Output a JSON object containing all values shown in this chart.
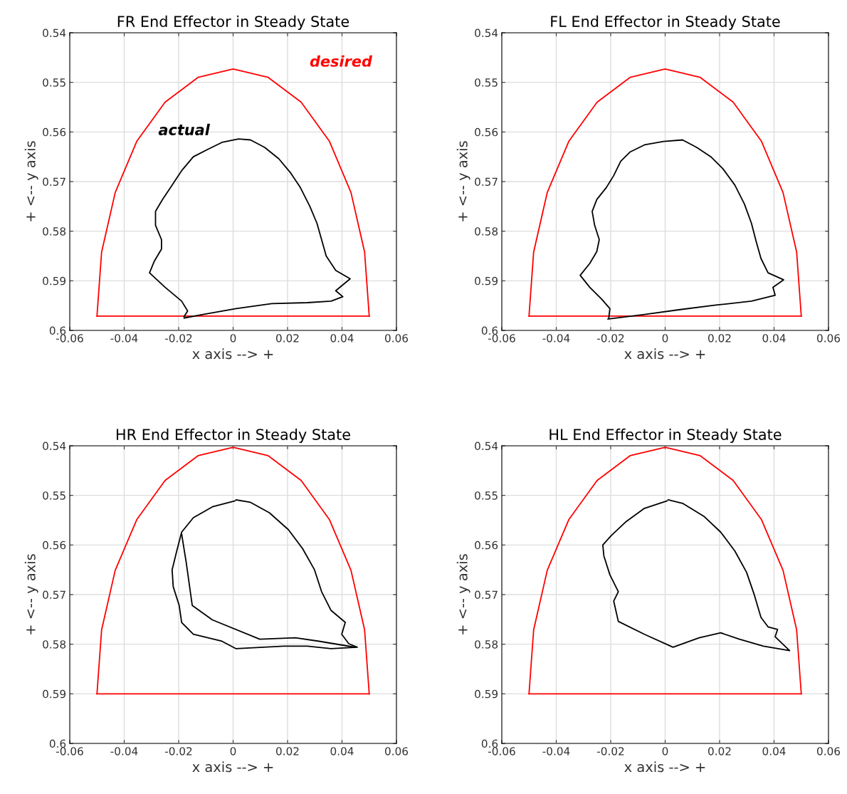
{
  "chart_data": [
    {
      "type": "line",
      "title": "FR End Effector in Steady State",
      "xlabel": "x axis --> +",
      "ylabel": "+ <-- y axis",
      "xlim": [
        -0.06,
        0.06
      ],
      "ylim": [
        0.6,
        0.54
      ],
      "xticks": [
        -0.06,
        -0.04,
        -0.02,
        0,
        0.02,
        0.04,
        0.06
      ],
      "yticks": [
        0.54,
        0.55,
        0.56,
        0.57,
        0.58,
        0.59,
        0.6
      ],
      "grid": true,
      "series": [
        {
          "name": "desired",
          "color": "#ff0000",
          "x": [
            -0.05,
            -0.0483,
            -0.0433,
            -0.0354,
            -0.025,
            -0.0129,
            0,
            0.0129,
            0.025,
            0.0354,
            0.0433,
            0.0483,
            0.05
          ],
          "values": [
            0.5971,
            0.5842,
            0.5722,
            0.5619,
            0.554,
            0.549,
            0.5473,
            0.549,
            0.554,
            0.5619,
            0.5722,
            0.5842,
            0.5971
          ]
        },
        {
          "color": "#ff0000",
          "x": [
            -0.05,
            0.05
          ],
          "values": [
            0.5971,
            0.5971
          ]
        },
        {
          "name": "actual",
          "color": "#000000",
          "x": [
            -0.018,
            -0.0167,
            -0.0189,
            -0.025,
            -0.0307,
            -0.0289,
            -0.0263,
            -0.0263,
            -0.0285,
            -0.0285,
            -0.0259,
            -0.0224,
            -0.0189,
            -0.0146,
            -0.0093,
            -0.0041,
            0.002,
            0.0064,
            0.0116,
            0.0168,
            0.0212,
            0.0247,
            0.0282,
            0.0308,
            0.0325,
            0.0342,
            0.0377,
            0.043,
            0.0377,
            0.0403,
            0.036,
            0.0273,
            0.0142,
            0.0011,
            -0.0111,
            -0.018
          ],
          "values": [
            0.5972,
            0.5961,
            0.5941,
            0.5913,
            0.5884,
            0.586,
            0.5836,
            0.5817,
            0.5788,
            0.576,
            0.5736,
            0.5707,
            0.5678,
            0.565,
            0.5635,
            0.5621,
            0.5614,
            0.5616,
            0.5631,
            0.5654,
            0.5683,
            0.5712,
            0.575,
            0.5784,
            0.5817,
            0.585,
            0.5879,
            0.5896,
            0.592,
            0.5932,
            0.5941,
            0.5944,
            0.5946,
            0.5956,
            0.5968,
            0.5975
          ]
        }
      ]
    },
    {
      "type": "line",
      "title": "FL End Effector in Steady State",
      "xlabel": "x axis --> +",
      "ylabel": "+ <-- y axis",
      "xlim": [
        -0.06,
        0.06
      ],
      "ylim": [
        0.6,
        0.54
      ],
      "xticks": [
        -0.06,
        -0.04,
        -0.02,
        0,
        0.02,
        0.04,
        0.06
      ],
      "yticks": [
        0.54,
        0.55,
        0.56,
        0.57,
        0.58,
        0.59,
        0.6
      ],
      "grid": true,
      "series": [
        {
          "color": "#ff0000",
          "x": [
            -0.05,
            -0.0483,
            -0.0433,
            -0.0354,
            -0.025,
            -0.0129,
            0,
            0.0129,
            0.025,
            0.0354,
            0.0433,
            0.0483,
            0.05
          ],
          "values": [
            0.5971,
            0.5842,
            0.5722,
            0.5619,
            0.554,
            0.549,
            0.5473,
            0.549,
            0.554,
            0.5619,
            0.5722,
            0.5842,
            0.5971
          ]
        },
        {
          "color": "#ff0000",
          "x": [
            -0.05,
            0.05
          ],
          "values": [
            0.5971,
            0.5971
          ]
        },
        {
          "color": "#000000",
          "x": [
            -0.0207,
            -0.0203,
            -0.0233,
            -0.0277,
            -0.0312,
            -0.0277,
            -0.0251,
            -0.0242,
            -0.0259,
            -0.0268,
            -0.0251,
            -0.0216,
            -0.0189,
            -0.0163,
            -0.0128,
            -0.0076,
            -0.0006,
            0.0064,
            0.0116,
            0.0168,
            0.0212,
            0.0256,
            0.0291,
            0.0317,
            0.0335,
            0.0352,
            0.0378,
            0.0435,
            0.0396,
            0.0404,
            0.0317,
            0.0186,
            0.0055,
            -0.0076,
            -0.021
          ],
          "values": [
            0.5975,
            0.5956,
            0.5937,
            0.5913,
            0.5889,
            0.5865,
            0.5841,
            0.5817,
            0.5788,
            0.576,
            0.5736,
            0.5712,
            0.5688,
            0.5659,
            0.564,
            0.5626,
            0.5619,
            0.5616,
            0.5631,
            0.565,
            0.5674,
            0.5707,
            0.5745,
            0.5784,
            0.5822,
            0.5855,
            0.5884,
            0.5898,
            0.5913,
            0.5929,
            0.5941,
            0.5949,
            0.5958,
            0.5968,
            0.5977
          ]
        }
      ]
    },
    {
      "type": "line",
      "title": "HR End Effector in Steady State",
      "xlabel": "x axis --> +",
      "ylabel": "+ <-- y axis",
      "xlim": [
        -0.06,
        0.06
      ],
      "ylim": [
        0.6,
        0.54
      ],
      "xticks": [
        -0.06,
        -0.04,
        -0.02,
        0,
        0.02,
        0.04,
        0.06
      ],
      "yticks": [
        0.54,
        0.55,
        0.56,
        0.57,
        0.58,
        0.59,
        0.6
      ],
      "grid": true,
      "series": [
        {
          "color": "#ff0000",
          "x": [
            -0.05,
            -0.0483,
            -0.0433,
            -0.0354,
            -0.025,
            -0.0129,
            0,
            0.0129,
            0.025,
            0.0354,
            0.0433,
            0.0483,
            0.05
          ],
          "values": [
            0.59,
            0.5771,
            0.5651,
            0.5549,
            0.547,
            0.542,
            0.5403,
            0.542,
            0.547,
            0.5549,
            0.5651,
            0.5771,
            0.59
          ]
        },
        {
          "color": "#ff0000",
          "x": [
            -0.05,
            0.05
          ],
          "values": [
            0.59,
            0.59
          ]
        },
        {
          "color": "#000000",
          "x": [
            0.0011,
            0.0064,
            0.0133,
            0.0203,
            0.0255,
            0.0299,
            0.0325,
            0.036,
            0.0412,
            0.0399,
            0.0425,
            0.0456,
            0.036,
            0.0273,
            0.0186,
            0.0011,
            -0.0041,
            -0.0146,
            -0.0189,
            -0.0198,
            -0.022,
            -0.0224,
            -0.0207,
            -0.0189,
            -0.0146,
            -0.0076,
            0.0007
          ],
          "values": [
            0.5509,
            0.5514,
            0.5535,
            0.5569,
            0.5607,
            0.565,
            0.5694,
            0.5732,
            0.5756,
            0.578,
            0.5799,
            0.5806,
            0.5809,
            0.5804,
            0.5804,
            0.5809,
            0.5794,
            0.578,
            0.5756,
            0.5722,
            0.5684,
            0.565,
            0.5612,
            0.5574,
            0.5545,
            0.5523,
            0.5511
          ]
        },
        {
          "color": "#000000",
          "x": [
            -0.0189,
            -0.0172,
            -0.015,
            -0.0076,
            0.0098,
            0.0229,
            0.0316,
            0.0447
          ],
          "values": [
            0.5578,
            0.5636,
            0.5722,
            0.5751,
            0.579,
            0.5787,
            0.5794,
            0.5806
          ]
        }
      ]
    },
    {
      "type": "line",
      "title": "HL End Effector in Steady State",
      "xlabel": "x axis --> +",
      "ylabel": "+ <-- y axis",
      "xlim": [
        -0.06,
        0.06
      ],
      "ylim": [
        0.6,
        0.54
      ],
      "xticks": [
        -0.06,
        -0.04,
        -0.02,
        0,
        0.02,
        0.04,
        0.06
      ],
      "yticks": [
        0.54,
        0.55,
        0.56,
        0.57,
        0.58,
        0.59,
        0.6
      ],
      "grid": true,
      "series": [
        {
          "color": "#ff0000",
          "x": [
            -0.05,
            -0.0483,
            -0.0433,
            -0.0354,
            -0.025,
            -0.0129,
            0,
            0.0129,
            0.025,
            0.0354,
            0.0433,
            0.0483,
            0.05
          ],
          "values": [
            0.59,
            0.5771,
            0.5651,
            0.5549,
            0.547,
            0.542,
            0.5403,
            0.542,
            0.547,
            0.5549,
            0.5651,
            0.5771,
            0.59
          ]
        },
        {
          "color": "#ff0000",
          "x": [
            -0.05,
            0.05
          ],
          "values": [
            0.59,
            0.59
          ]
        },
        {
          "color": "#000000",
          "x": [
            0.0011,
            0.0064,
            0.0142,
            0.0204,
            0.0256,
            0.0299,
            0.0326,
            0.0352,
            0.0378,
            0.0413,
            0.0404,
            0.0457,
            0.0361,
            0.0273,
            0.0204,
            0.0125,
            0.0029,
            -0.0076,
            -0.0172,
            -0.0189,
            -0.0172,
            -0.0203,
            -0.0225,
            -0.0229,
            -0.0198,
            -0.0146,
            -0.0076,
            0.0007
          ],
          "values": [
            0.5509,
            0.5516,
            0.5542,
            0.5574,
            0.5612,
            0.5655,
            0.5698,
            0.5746,
            0.5765,
            0.577,
            0.5785,
            0.5813,
            0.5804,
            0.579,
            0.5777,
            0.5787,
            0.5806,
            0.578,
            0.5754,
            0.5713,
            0.5694,
            0.566,
            0.5622,
            0.56,
            0.5581,
            0.5554,
            0.5526,
            0.5511
          ]
        }
      ]
    }
  ]
}
